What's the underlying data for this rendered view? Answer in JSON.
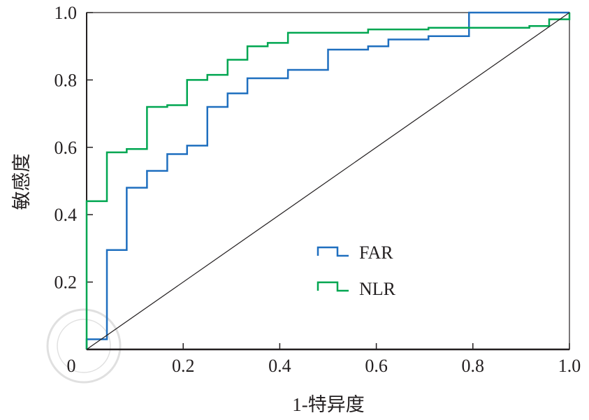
{
  "chart_data": {
    "type": "line",
    "title": "",
    "xlabel": "1-特异度",
    "ylabel": "敏感度",
    "xlim": [
      0,
      1
    ],
    "ylim": [
      0,
      1
    ],
    "xticks": [
      "0",
      "0.2",
      "0.4",
      "0.6",
      "0.8",
      "1.0"
    ],
    "yticks": [
      "0.2",
      "0.4",
      "0.6",
      "0.8",
      "1.0"
    ],
    "xtick_values": [
      0,
      0.2,
      0.4,
      0.6,
      0.8,
      1.0
    ],
    "ytick_values": [
      0.2,
      0.4,
      0.6,
      0.8,
      1.0
    ],
    "legend_position": "center-right",
    "series": [
      {
        "name": "FAR",
        "color": "#1f6fbf",
        "step": true,
        "x": [
          0,
          0.042,
          0.083,
          0.125,
          0.167,
          0.208,
          0.25,
          0.292,
          0.333,
          0.417,
          0.5,
          0.583,
          0.625,
          0.708,
          0.792,
          1.0
        ],
        "y": [
          0.03,
          0.295,
          0.48,
          0.53,
          0.58,
          0.605,
          0.72,
          0.76,
          0.805,
          0.83,
          0.89,
          0.9,
          0.92,
          0.93,
          1.0,
          1.0
        ]
      },
      {
        "name": "NLR",
        "color": "#00a651",
        "step": true,
        "x": [
          0,
          0.042,
          0.083,
          0.125,
          0.167,
          0.208,
          0.25,
          0.292,
          0.333,
          0.375,
          0.417,
          0.583,
          0.708,
          0.917,
          0.958,
          1.0
        ],
        "y": [
          0.44,
          0.585,
          0.595,
          0.72,
          0.725,
          0.8,
          0.815,
          0.86,
          0.9,
          0.91,
          0.94,
          0.95,
          0.955,
          0.96,
          0.98,
          1.0
        ]
      },
      {
        "name": "reference",
        "color": "#231f20",
        "step": false,
        "x": [
          0,
          1
        ],
        "y": [
          0,
          1
        ]
      }
    ]
  }
}
